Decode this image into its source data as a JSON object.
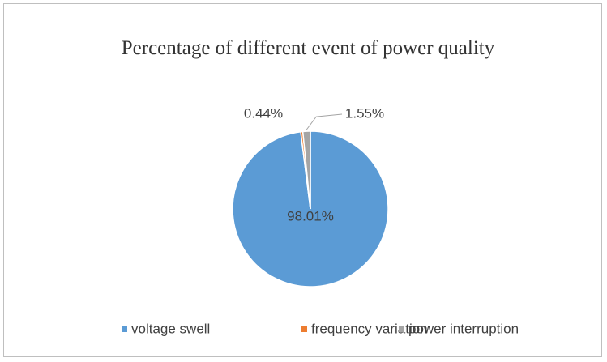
{
  "chart_data": {
    "type": "pie",
    "title": "Percentage of different event of power quality",
    "categories": [
      "voltage swell",
      "frequency variation",
      "power interruption"
    ],
    "values": [
      98.01,
      0.44,
      1.55
    ],
    "value_labels": [
      "98.01%",
      "0.44%",
      "1.55%"
    ],
    "colors": [
      "#5b9bd5",
      "#ed7d31",
      "#a5a5a5"
    ],
    "legend": "bottom"
  }
}
